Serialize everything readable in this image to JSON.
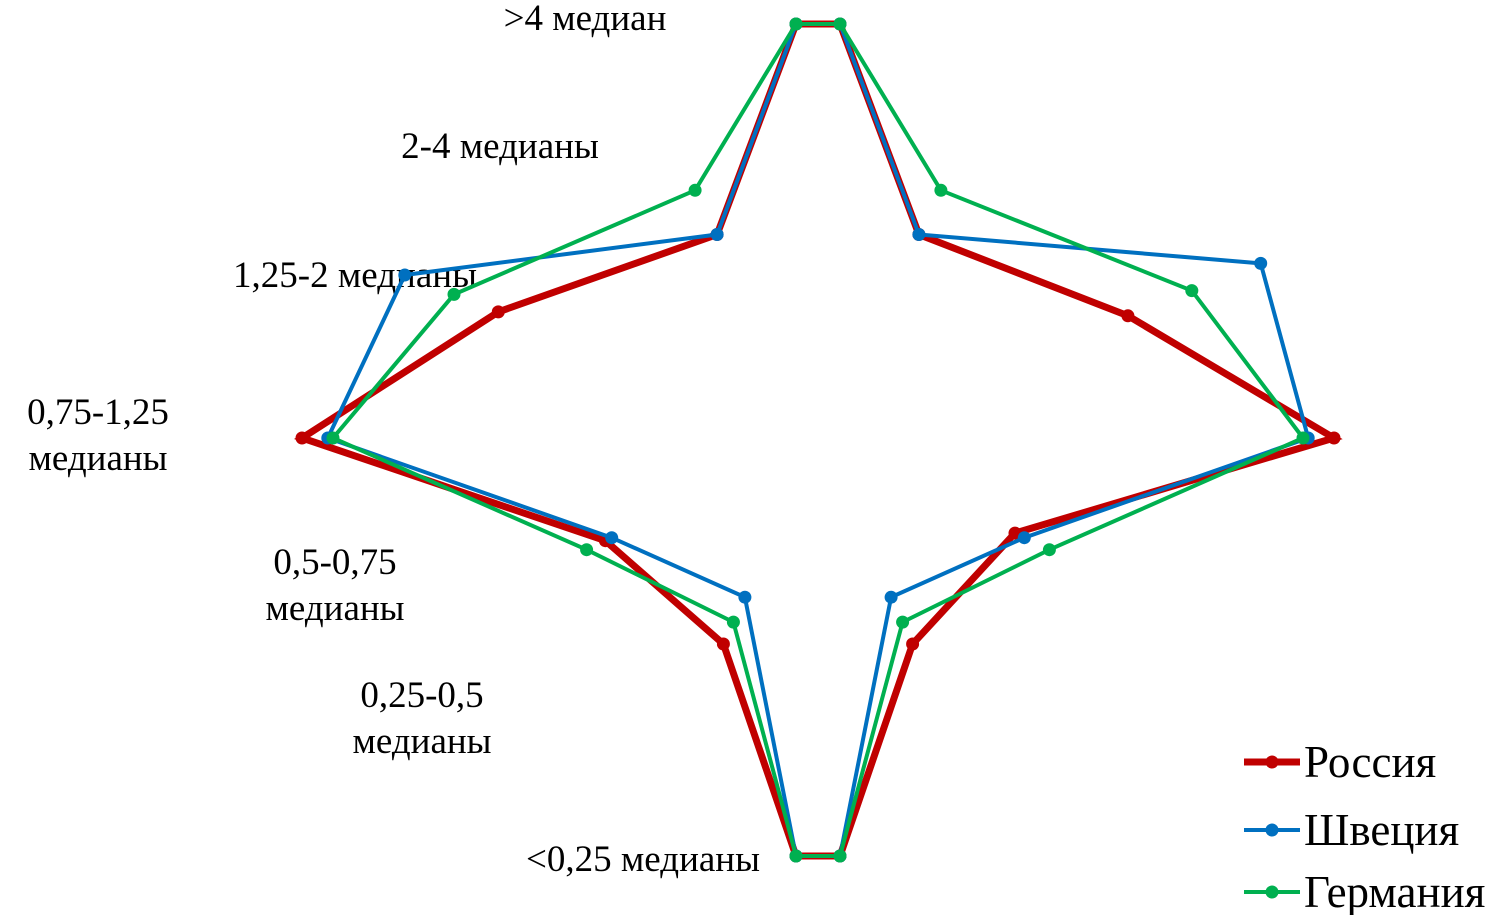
{
  "chart_data": {
    "type": "radar",
    "title": "",
    "categories": [
      ">4 медиан",
      "2-4 медианы",
      "1,25-2 медианы",
      "0,75-1,25 медианы",
      "0,5-0,75 медианы",
      "0,25-0,5 медианы",
      "<0,25 медианы"
    ],
    "category_labels": [
      [
        ">4 медиан"
      ],
      [
        "2-4 медианы"
      ],
      [
        "1,25-2 медианы"
      ],
      [
        "0,75-1,25",
        "медианы"
      ],
      [
        "0,5-0,75",
        "медианы"
      ],
      [
        "0,25-0,5",
        "медианы"
      ],
      [
        "<0,25 медианы"
      ]
    ],
    "series": [
      {
        "name": "Россия",
        "color": "#C00000",
        "left": [
          1.0,
          0.69,
          0.65,
          1.0,
          0.68,
          0.66,
          1.0
        ],
        "right": [
          1.0,
          0.69,
          0.63,
          1.0,
          0.63,
          0.66,
          1.0
        ]
      },
      {
        "name": "Швеция",
        "color": "#0070C0",
        "left": [
          1.0,
          0.69,
          0.84,
          0.95,
          0.66,
          0.51,
          1.0
        ],
        "right": [
          1.0,
          0.69,
          0.9,
          0.95,
          0.66,
          0.51,
          1.0
        ]
      },
      {
        "name": "Германия",
        "color": "#00B050",
        "left": [
          1.0,
          0.84,
          0.74,
          0.94,
          0.74,
          0.59,
          1.0
        ],
        "right": [
          1.0,
          0.84,
          0.76,
          0.94,
          0.74,
          0.59,
          1.0
        ]
      }
    ],
    "legend_position": "bottom-right",
    "grid": false
  }
}
